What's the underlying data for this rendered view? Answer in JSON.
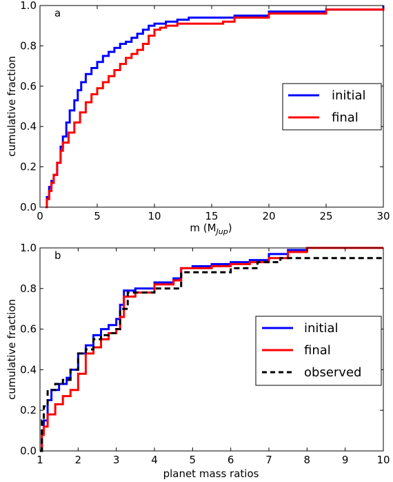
{
  "chart_data": [
    {
      "type": "line",
      "step": true,
      "panel_label": "a",
      "xlabel": "m (M",
      "xlabel_sub": "Jup",
      "xlabel_close": ")",
      "ylabel": "cumulative fraction",
      "xlim": [
        0,
        30
      ],
      "ylim": [
        0,
        1
      ],
      "xticks": [
        0,
        5,
        10,
        15,
        20,
        25,
        30
      ],
      "xtick_labels": [
        "0",
        "5",
        "10",
        "15",
        "20",
        "25",
        "30"
      ],
      "yticks": [
        0,
        0.2,
        0.4,
        0.6,
        0.8,
        1.0
      ],
      "ytick_labels": [
        "0.0",
        "0.2",
        "0.4",
        "0.6",
        "0.8",
        "1.0"
      ],
      "grid": false,
      "legend_position": "center-right",
      "series": [
        {
          "name": "initial",
          "color": "#0000ff",
          "style": "solid",
          "x": [
            0.5,
            0.6,
            0.8,
            1.0,
            1.2,
            1.5,
            1.8,
            2.0,
            2.3,
            2.6,
            3.0,
            3.3,
            3.6,
            4.0,
            4.5,
            5.0,
            5.5,
            6.0,
            6.5,
            7.0,
            7.5,
            8.0,
            8.5,
            9.0,
            9.5,
            10.0,
            11.0,
            12.0,
            13.0,
            14.0,
            15.0,
            17.0,
            20.0,
            25.0,
            30.0
          ],
          "y": [
            0.0,
            0.05,
            0.1,
            0.13,
            0.16,
            0.22,
            0.3,
            0.35,
            0.42,
            0.48,
            0.53,
            0.58,
            0.62,
            0.66,
            0.69,
            0.72,
            0.75,
            0.77,
            0.79,
            0.81,
            0.82,
            0.84,
            0.86,
            0.88,
            0.9,
            0.91,
            0.92,
            0.93,
            0.94,
            0.94,
            0.94,
            0.95,
            0.97,
            0.98,
            1.0
          ]
        },
        {
          "name": "final",
          "color": "#ff0000",
          "style": "solid",
          "x": [
            0.5,
            0.6,
            0.8,
            1.0,
            1.2,
            1.5,
            1.8,
            2.0,
            2.5,
            3.0,
            3.5,
            4.0,
            4.5,
            5.0,
            5.5,
            6.0,
            6.5,
            7.0,
            7.5,
            8.0,
            8.5,
            9.0,
            9.5,
            10.0,
            10.5,
            11.0,
            12.0,
            13.0,
            15.0,
            16.0,
            17.0,
            20.0,
            25.0,
            30.0
          ],
          "y": [
            0.0,
            0.04,
            0.08,
            0.12,
            0.16,
            0.22,
            0.28,
            0.32,
            0.37,
            0.42,
            0.47,
            0.52,
            0.56,
            0.59,
            0.62,
            0.65,
            0.68,
            0.71,
            0.74,
            0.76,
            0.78,
            0.81,
            0.85,
            0.88,
            0.89,
            0.9,
            0.91,
            0.91,
            0.91,
            0.92,
            0.94,
            0.96,
            0.98,
            0.99
          ]
        }
      ]
    },
    {
      "type": "line",
      "step": true,
      "panel_label": "b",
      "xlabel": "planet mass ratios",
      "ylabel": "cumulative fraction",
      "xlim": [
        1,
        10
      ],
      "ylim": [
        0,
        1
      ],
      "xticks": [
        1,
        2,
        3,
        4,
        5,
        6,
        7,
        8,
        9,
        10
      ],
      "xtick_labels": [
        "1",
        "2",
        "3",
        "4",
        "5",
        "6",
        "7",
        "8",
        "9",
        "10"
      ],
      "yticks": [
        0,
        0.2,
        0.4,
        0.6,
        0.8,
        1.0
      ],
      "ytick_labels": [
        "0.0",
        "0.2",
        "0.4",
        "0.6",
        "0.8",
        "1.0"
      ],
      "grid": false,
      "legend_position": "center-right",
      "series": [
        {
          "name": "initial",
          "color": "#0000ff",
          "style": "solid",
          "x": [
            1.0,
            1.05,
            1.1,
            1.2,
            1.3,
            1.5,
            1.7,
            1.8,
            2.0,
            2.2,
            2.4,
            2.6,
            2.8,
            3.0,
            3.1,
            3.2,
            3.5,
            4.0,
            4.5,
            4.7,
            5.0,
            5.5,
            6.0,
            6.5,
            7.0,
            7.5,
            8.0,
            10.0
          ],
          "y": [
            0.0,
            0.1,
            0.15,
            0.25,
            0.3,
            0.33,
            0.36,
            0.4,
            0.48,
            0.52,
            0.57,
            0.6,
            0.62,
            0.65,
            0.72,
            0.79,
            0.8,
            0.83,
            0.85,
            0.9,
            0.91,
            0.92,
            0.93,
            0.94,
            0.97,
            0.99,
            1.0,
            1.0
          ]
        },
        {
          "name": "final",
          "color": "#ff0000",
          "style": "solid",
          "x": [
            1.0,
            1.05,
            1.1,
            1.2,
            1.4,
            1.6,
            1.8,
            2.0,
            2.2,
            2.4,
            2.6,
            2.8,
            3.0,
            3.1,
            3.2,
            3.5,
            4.0,
            4.5,
            4.7,
            5.0,
            5.5,
            6.0,
            6.5,
            7.0,
            7.5,
            8.0,
            10.0
          ],
          "y": [
            0.0,
            0.08,
            0.12,
            0.18,
            0.23,
            0.27,
            0.3,
            0.38,
            0.48,
            0.51,
            0.55,
            0.58,
            0.6,
            0.66,
            0.76,
            0.78,
            0.82,
            0.84,
            0.9,
            0.9,
            0.91,
            0.92,
            0.93,
            0.95,
            0.98,
            1.0,
            1.0
          ]
        },
        {
          "name": "observed",
          "color": "#000000",
          "style": "dashed",
          "x": [
            1.0,
            1.05,
            1.1,
            1.2,
            1.4,
            1.6,
            1.8,
            2.0,
            2.2,
            2.4,
            2.6,
            2.8,
            3.0,
            3.1,
            3.3,
            3.7,
            4.0,
            4.7,
            5.0,
            6.0,
            6.7,
            7.3,
            10.0
          ],
          "y": [
            0.0,
            0.15,
            0.22,
            0.3,
            0.33,
            0.35,
            0.4,
            0.48,
            0.5,
            0.55,
            0.57,
            0.58,
            0.6,
            0.7,
            0.78,
            0.78,
            0.8,
            0.88,
            0.88,
            0.9,
            0.93,
            0.95,
            0.95
          ]
        }
      ]
    }
  ]
}
